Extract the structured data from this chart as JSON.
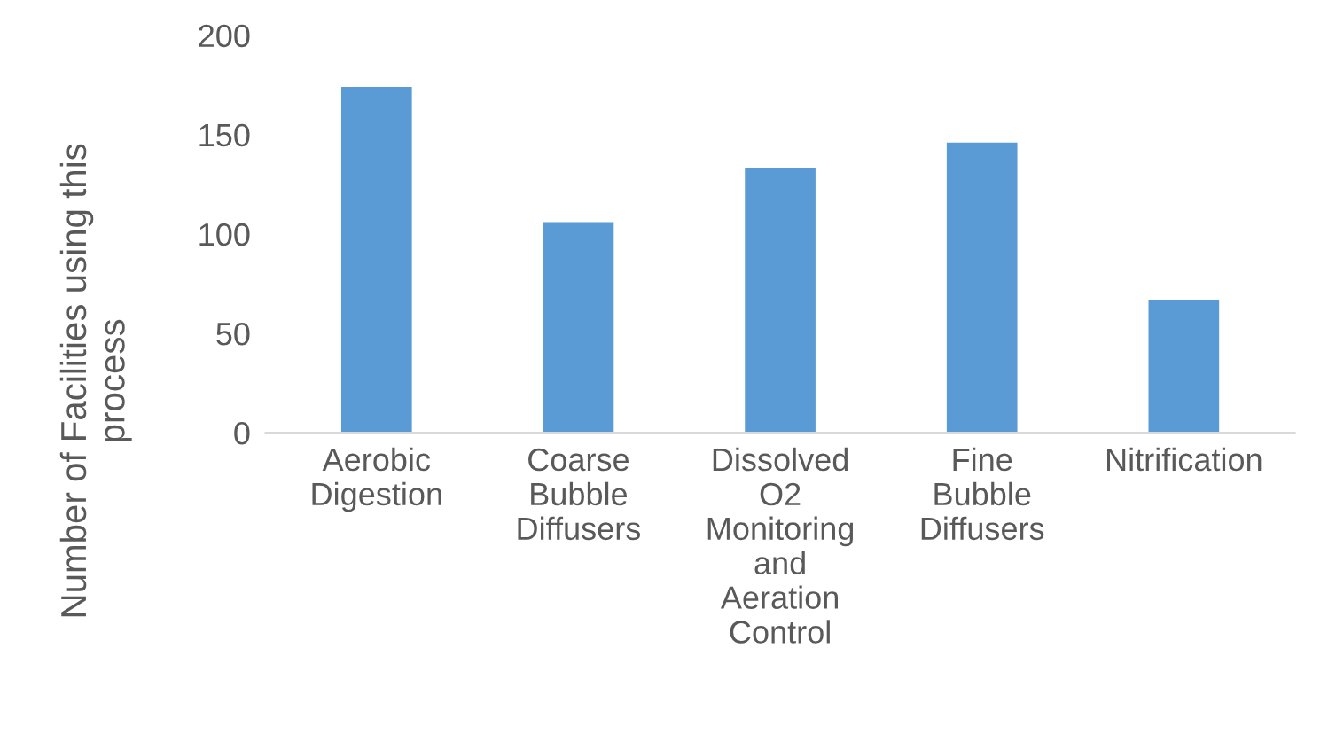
{
  "chart_data": {
    "type": "bar",
    "ylabel": "Number of Facilities using this process",
    "categories": [
      "Aerobic Digestion",
      "Coarse Bubble Diffusers",
      "Dissolved O2 Monitoring and Aeration Control",
      "Fine Bubble Diffusers",
      "Nitrification"
    ],
    "values": [
      174,
      106,
      133,
      146,
      67
    ],
    "color": "#5b9bd5",
    "ylim": [
      0,
      200
    ],
    "yticks": [
      0,
      50,
      100,
      150,
      200
    ],
    "grid": false
  }
}
